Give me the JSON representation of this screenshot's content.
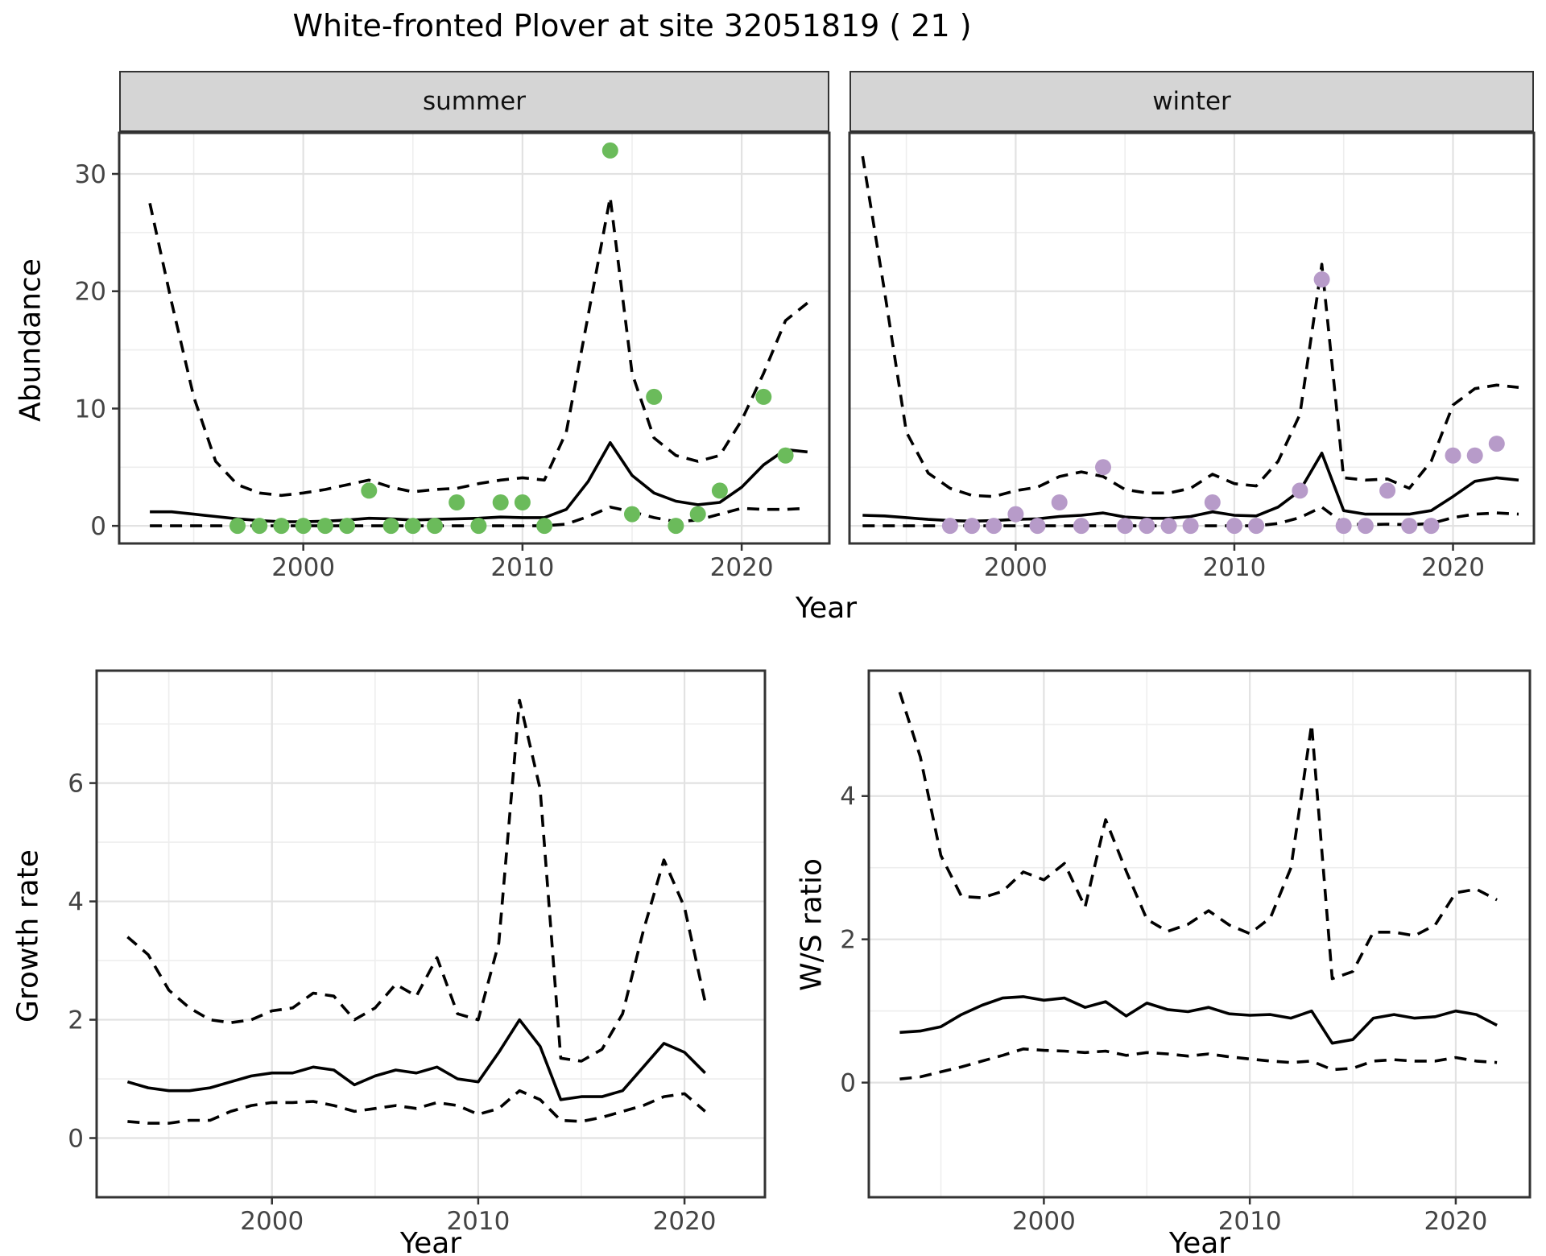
{
  "title": "White-fronted Plover at site 32051819 ( 21 )",
  "axis_titles": {
    "abundance_y": "Abundance",
    "top_x": "Year",
    "growth_y": "Growth rate",
    "growth_x": "Year",
    "ws_y": "W/S ratio",
    "ws_x": "Year"
  },
  "facet_labels": {
    "summer": "summer",
    "winter": "winter"
  },
  "colors": {
    "summer_points": "#6bbb5b",
    "winter_points": "#b79bc9",
    "line": "#000000",
    "strip_bg": "#d5d5d5",
    "grid_major": "#e2e2e2",
    "grid_minor": "#eeeeee",
    "panel_border": "#333333",
    "tick_text": "#444444",
    "tick_mark": "#333333"
  },
  "chart_data": [
    {
      "id": "abundance-summer",
      "type": "line",
      "title": "summer",
      "xlabel": "Year",
      "ylabel": "Abundance",
      "xlim": [
        1991.6,
        2024.0
      ],
      "ylim": [
        -1.5,
        33.5
      ],
      "xticks": [
        2000,
        2010,
        2020
      ],
      "yticks": [
        0,
        10,
        20,
        30
      ],
      "xminor": [
        1995,
        2005,
        2015
      ],
      "yminor": [
        5,
        15,
        25
      ],
      "show_ytick_labels": true,
      "x": [
        1993,
        1994,
        1995,
        1996,
        1997,
        1998,
        1999,
        2000,
        2001,
        2002,
        2003,
        2004,
        2005,
        2006,
        2007,
        2008,
        2009,
        2010,
        2011,
        2012,
        2013,
        2014,
        2015,
        2016,
        2017,
        2018,
        2019,
        2020,
        2021,
        2022,
        2023
      ],
      "series": [
        {
          "name": "median",
          "style": "solid",
          "values": [
            1.2,
            1.2,
            1.0,
            0.8,
            0.6,
            0.45,
            0.35,
            0.35,
            0.4,
            0.5,
            0.65,
            0.6,
            0.5,
            0.55,
            0.6,
            0.65,
            0.75,
            0.7,
            0.7,
            1.4,
            3.8,
            7.1,
            4.3,
            2.8,
            2.1,
            1.8,
            2.0,
            3.3,
            5.2,
            6.5,
            6.3
          ]
        },
        {
          "name": "lower_ci",
          "style": "dashed",
          "values": [
            0,
            0,
            0,
            0,
            0,
            0,
            0,
            0,
            0,
            0,
            0,
            0,
            0,
            0,
            0,
            0,
            0,
            0,
            0,
            0.15,
            0.8,
            1.6,
            1.2,
            0.7,
            0.35,
            0.5,
            1.0,
            1.5,
            1.4,
            1.4,
            1.5
          ]
        },
        {
          "name": "upper_ci",
          "style": "dashed",
          "values": [
            27.5,
            19,
            11,
            5.5,
            3.5,
            2.8,
            2.6,
            2.8,
            3.1,
            3.5,
            3.9,
            3.3,
            2.9,
            3.1,
            3.2,
            3.6,
            3.9,
            4.1,
            3.9,
            8,
            18,
            28,
            13,
            7.5,
            6,
            5.5,
            6,
            9,
            13,
            17.5,
            19
          ]
        }
      ],
      "points": {
        "name": "observed-counts",
        "color_key": "summer_points",
        "x": [
          1997,
          1998,
          1999,
          2000,
          2001,
          2002,
          2003,
          2004,
          2005,
          2006,
          2007,
          2008,
          2009,
          2010,
          2011,
          2014,
          2015,
          2016,
          2017,
          2018,
          2019,
          2021,
          2022
        ],
        "y": [
          0,
          0,
          0,
          0,
          0,
          0,
          3,
          0,
          0,
          0,
          2,
          0,
          2,
          2,
          0,
          32,
          1,
          11,
          0,
          1,
          3,
          11,
          6
        ]
      }
    },
    {
      "id": "abundance-winter",
      "type": "line",
      "title": "winter",
      "xlabel": "Year",
      "ylabel": "Abundance",
      "xlim": [
        1992.4,
        2023.7
      ],
      "ylim": [
        -1.5,
        33.5
      ],
      "xticks": [
        2000,
        2010,
        2020
      ],
      "yticks": [
        0,
        10,
        20,
        30
      ],
      "xminor": [
        1995,
        2005,
        2015
      ],
      "yminor": [
        5,
        15,
        25
      ],
      "show_ytick_labels": false,
      "x": [
        1993,
        1994,
        1995,
        1996,
        1997,
        1998,
        1999,
        2000,
        2001,
        2002,
        2003,
        2004,
        2005,
        2006,
        2007,
        2008,
        2009,
        2010,
        2011,
        2012,
        2013,
        2014,
        2015,
        2016,
        2017,
        2018,
        2019,
        2020,
        2021,
        2022,
        2023
      ],
      "series": [
        {
          "name": "median",
          "style": "solid",
          "values": [
            0.9,
            0.85,
            0.7,
            0.55,
            0.45,
            0.4,
            0.45,
            0.55,
            0.6,
            0.8,
            0.9,
            1.1,
            0.75,
            0.65,
            0.65,
            0.8,
            1.2,
            0.9,
            0.85,
            1.6,
            3.0,
            6.2,
            1.3,
            1.0,
            1.0,
            1.0,
            1.3,
            2.5,
            3.8,
            4.1,
            3.9
          ]
        },
        {
          "name": "lower_ci",
          "style": "dashed",
          "values": [
            0,
            0,
            0,
            0,
            0,
            0,
            0,
            0,
            0,
            0,
            0,
            0,
            0,
            0,
            0,
            0,
            0,
            0,
            0,
            0.2,
            0.7,
            1.6,
            0.2,
            0.1,
            0.15,
            0.1,
            0.2,
            0.7,
            1.0,
            1.1,
            1.0
          ]
        },
        {
          "name": "upper_ci",
          "style": "dashed",
          "values": [
            31.5,
            20,
            8,
            4.5,
            3.2,
            2.6,
            2.5,
            3.0,
            3.3,
            4.2,
            4.6,
            4.2,
            3.1,
            2.8,
            2.8,
            3.2,
            4.4,
            3.6,
            3.4,
            5.5,
            9.5,
            22.3,
            4.1,
            3.9,
            4.0,
            3.2,
            5.5,
            10.3,
            11.7,
            12.0,
            11.8
          ]
        }
      ],
      "points": {
        "name": "observed-counts",
        "color_key": "winter_points",
        "x": [
          1997,
          1998,
          1999,
          2000,
          2001,
          2002,
          2003,
          2004,
          2005,
          2006,
          2007,
          2008,
          2009,
          2010,
          2011,
          2013,
          2014,
          2015,
          2016,
          2017,
          2018,
          2019,
          2020,
          2021,
          2022
        ],
        "y": [
          0,
          0,
          0,
          1,
          0,
          2,
          0,
          5,
          0,
          0,
          0,
          0,
          2,
          0,
          0,
          3,
          21,
          0,
          0,
          3,
          0,
          0,
          6,
          6,
          7
        ]
      }
    },
    {
      "id": "growth-rate",
      "type": "line",
      "title": "",
      "xlabel": "Year",
      "ylabel": "Growth rate",
      "xlim": [
        1991.5,
        2023.9
      ],
      "ylim": [
        -1.0,
        7.9
      ],
      "xticks": [
        2000,
        2010,
        2020
      ],
      "yticks": [
        0,
        2,
        4,
        6
      ],
      "xminor": [
        1995,
        2005,
        2015
      ],
      "yminor": [
        1,
        3,
        5,
        7
      ],
      "show_ytick_labels": true,
      "x": [
        1993,
        1994,
        1995,
        1996,
        1997,
        1998,
        1999,
        2000,
        2001,
        2002,
        2003,
        2004,
        2005,
        2006,
        2007,
        2008,
        2009,
        2010,
        2011,
        2012,
        2013,
        2014,
        2015,
        2016,
        2017,
        2018,
        2019,
        2020,
        2021
      ],
      "series": [
        {
          "name": "median",
          "style": "solid",
          "values": [
            0.95,
            0.85,
            0.8,
            0.8,
            0.85,
            0.95,
            1.05,
            1.1,
            1.1,
            1.2,
            1.15,
            0.9,
            1.05,
            1.15,
            1.1,
            1.2,
            1.0,
            0.95,
            1.45,
            2.0,
            1.55,
            0.65,
            0.7,
            0.7,
            0.8,
            1.2,
            1.6,
            1.45,
            1.1
          ]
        },
        {
          "name": "lower_ci",
          "style": "dashed",
          "values": [
            0.28,
            0.25,
            0.25,
            0.3,
            0.3,
            0.45,
            0.55,
            0.6,
            0.6,
            0.62,
            0.55,
            0.45,
            0.5,
            0.55,
            0.5,
            0.6,
            0.55,
            0.4,
            0.5,
            0.8,
            0.65,
            0.3,
            0.28,
            0.35,
            0.45,
            0.55,
            0.7,
            0.75,
            0.45
          ]
        },
        {
          "name": "upper_ci",
          "style": "dashed",
          "values": [
            3.4,
            3.1,
            2.5,
            2.2,
            2.0,
            1.95,
            2.0,
            2.15,
            2.2,
            2.45,
            2.4,
            2.0,
            2.2,
            2.6,
            2.4,
            3.05,
            2.1,
            2.0,
            3.3,
            7.4,
            5.9,
            1.35,
            1.3,
            1.5,
            2.1,
            3.5,
            4.7,
            3.9,
            2.3
          ]
        }
      ],
      "points": null
    },
    {
      "id": "ws-ratio",
      "type": "line",
      "title": "",
      "xlabel": "Year",
      "ylabel": "W/S ratio",
      "xlim": [
        1991.5,
        2023.6
      ],
      "ylim": [
        -1.6,
        5.75
      ],
      "xticks": [
        2000,
        2010,
        2020
      ],
      "yticks": [
        0,
        2,
        4
      ],
      "xminor": [
        1995,
        2005,
        2015
      ],
      "yminor": [
        1,
        3,
        5
      ],
      "show_ytick_labels": true,
      "x": [
        1993,
        1994,
        1995,
        1996,
        1997,
        1998,
        1999,
        2000,
        2001,
        2002,
        2003,
        2004,
        2005,
        2006,
        2007,
        2008,
        2009,
        2010,
        2011,
        2012,
        2013,
        2014,
        2015,
        2016,
        2017,
        2018,
        2019,
        2020,
        2021,
        2022
      ],
      "series": [
        {
          "name": "median",
          "style": "solid",
          "values": [
            0.7,
            0.72,
            0.78,
            0.95,
            1.08,
            1.18,
            1.2,
            1.15,
            1.18,
            1.05,
            1.13,
            0.93,
            1.11,
            1.02,
            0.99,
            1.05,
            0.96,
            0.94,
            0.95,
            0.9,
            1.0,
            0.55,
            0.6,
            0.9,
            0.95,
            0.9,
            0.92,
            1.0,
            0.95,
            0.8
          ]
        },
        {
          "name": "lower_ci",
          "style": "dashed",
          "values": [
            0.05,
            0.08,
            0.15,
            0.22,
            0.3,
            0.38,
            0.47,
            0.45,
            0.44,
            0.42,
            0.44,
            0.38,
            0.42,
            0.4,
            0.37,
            0.4,
            0.36,
            0.33,
            0.3,
            0.28,
            0.3,
            0.18,
            0.2,
            0.3,
            0.32,
            0.3,
            0.3,
            0.35,
            0.3,
            0.28
          ]
        },
        {
          "name": "upper_ci",
          "style": "dashed",
          "values": [
            5.45,
            4.55,
            3.17,
            2.6,
            2.58,
            2.67,
            2.94,
            2.83,
            3.06,
            2.45,
            3.67,
            2.95,
            2.28,
            2.11,
            2.21,
            2.4,
            2.2,
            2.08,
            2.3,
            3.0,
            5.0,
            1.45,
            1.55,
            2.1,
            2.1,
            2.05,
            2.2,
            2.65,
            2.7,
            2.55
          ]
        }
      ],
      "points": null
    }
  ]
}
